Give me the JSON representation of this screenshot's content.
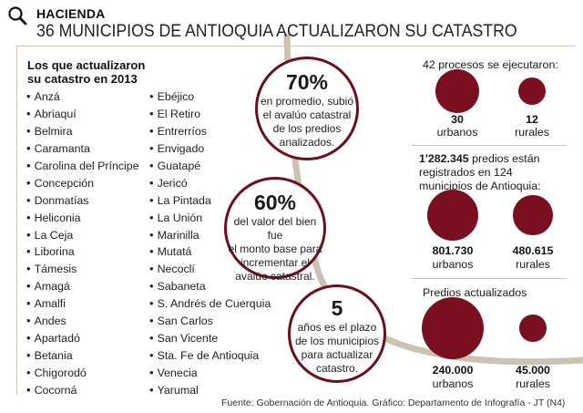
{
  "header": {
    "section": "HACIENDA",
    "headline": "36 MUNICIPIOS DE ANTIOQUIA ACTUALIZARON SU CATASTRO",
    "icon": "magnifier-icon"
  },
  "list": {
    "title_line1": "Los que actualizaron",
    "title_line2": "su catastro en 2013",
    "column1": [
      "Anzá",
      "Abriaquí",
      "Belmira",
      "Caramanta",
      "Carolina del Príncipe",
      "Concepción",
      "Donmatías",
      "Heliconia",
      "La Ceja",
      "Liborina",
      "Támesis",
      "Amagá",
      "Amalfi",
      "Andes",
      "Apartadó",
      "Betania",
      "Chigorodó",
      "Cocorná"
    ],
    "column2": [
      "Ebéjico",
      "El Retiro",
      "Entrerríos",
      "Envigado",
      "Guatapé",
      "Jericó",
      "La Pintada",
      "La Unión",
      "Marinilla",
      "Mutatá",
      "Necoclí",
      "Sabaneta",
      "S. Andrés de Cuerquia",
      "San Carlos",
      "San Vicente",
      "Sta. Fe de Antioquia",
      "Venecia",
      "Yarumal"
    ]
  },
  "highlights": [
    {
      "value": "70%",
      "lines": [
        "en promedio, subió",
        "el avalúo catastral",
        "de los predios",
        "analizados."
      ]
    },
    {
      "value": "60%",
      "lines": [
        "del valor del bien fue",
        "el monto base para",
        "incrementar  el",
        "avalúo catastral."
      ]
    },
    {
      "value": "5",
      "lines": [
        "años es el plazo",
        "de los municipios",
        "para actualizar",
        "catastro."
      ]
    }
  ],
  "colors": {
    "accent": "#7a0f1f",
    "border": "#6b0f1c",
    "arc": "#cbc2b2"
  },
  "chart_data": [
    {
      "type": "bubble",
      "title": "42 procesos se ejecutaron:",
      "categories": [
        "urbanos",
        "rurales"
      ],
      "values": [
        30,
        12
      ],
      "value_labels": [
        "30",
        "12"
      ]
    },
    {
      "type": "bubble",
      "title_bold": "1'282.345",
      "title_rest": " predios están",
      "title_line2": "registrados en 124",
      "title_line3": "municipios de Antioquia:",
      "categories": [
        "urbanos",
        "rurales"
      ],
      "values": [
        801730,
        480615
      ],
      "value_labels": [
        "801.730",
        "480.615"
      ]
    },
    {
      "type": "bubble",
      "title": "Predios actualizados",
      "categories": [
        "urbanos",
        "rurales"
      ],
      "values": [
        240000,
        45000
      ],
      "value_labels": [
        "240.000",
        "45.000"
      ]
    }
  ],
  "footer": "Fuente: Gobernación de Antioquia. Gráfico: Departamento de Infografía - JT (N4)"
}
